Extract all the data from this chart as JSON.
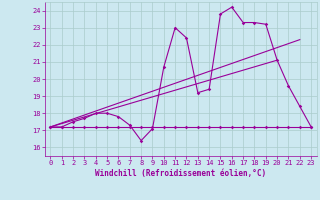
{
  "xlabel": "Windchill (Refroidissement éolien,°C)",
  "background_color": "#cce8f0",
  "grid_color": "#aacccc",
  "line_color": "#990099",
  "x_ticks": [
    0,
    1,
    2,
    3,
    4,
    5,
    6,
    7,
    8,
    9,
    10,
    11,
    12,
    13,
    14,
    15,
    16,
    17,
    18,
    19,
    20,
    21,
    22,
    23
  ],
  "y_ticks": [
    16,
    17,
    18,
    19,
    20,
    21,
    22,
    23,
    24
  ],
  "xlim": [
    -0.5,
    23.5
  ],
  "ylim": [
    15.5,
    24.5
  ],
  "series1_x": [
    0,
    1,
    2,
    3,
    4,
    5,
    6,
    7,
    8,
    9,
    10,
    11,
    12,
    13,
    14,
    15,
    16,
    17,
    18,
    19,
    20,
    21,
    22,
    23
  ],
  "series1_y": [
    17.2,
    17.2,
    17.5,
    17.7,
    18.0,
    18.0,
    17.8,
    17.3,
    16.4,
    17.1,
    20.7,
    23.0,
    22.4,
    19.2,
    19.4,
    23.8,
    24.2,
    23.3,
    23.3,
    23.2,
    21.1,
    19.6,
    18.4,
    17.2
  ],
  "series2_x": [
    0,
    1,
    2,
    3,
    4,
    5,
    6,
    7,
    8,
    9,
    10,
    11,
    12,
    13,
    14,
    15,
    16,
    17,
    18,
    19,
    20,
    21,
    22,
    23
  ],
  "series2_y": [
    17.2,
    17.2,
    17.2,
    17.2,
    17.2,
    17.2,
    17.2,
    17.2,
    17.2,
    17.2,
    17.2,
    17.2,
    17.2,
    17.2,
    17.2,
    17.2,
    17.2,
    17.2,
    17.2,
    17.2,
    17.2,
    17.2,
    17.2,
    17.2
  ],
  "series3_x": [
    0,
    22
  ],
  "series3_y": [
    17.2,
    22.3
  ],
  "series4_x": [
    0,
    20
  ],
  "series4_y": [
    17.2,
    21.1
  ]
}
